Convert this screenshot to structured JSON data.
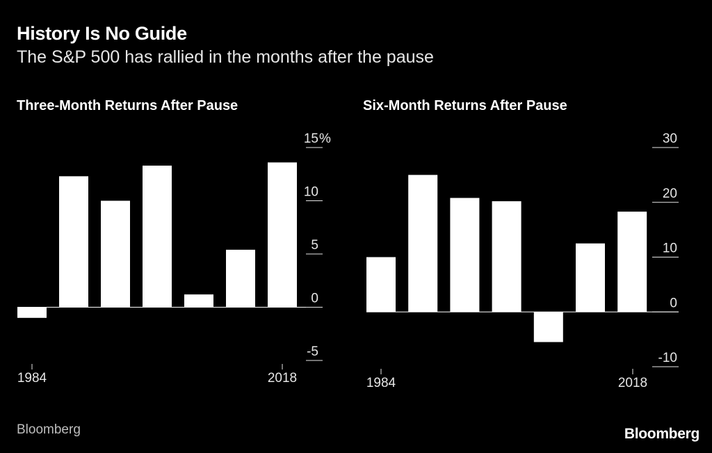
{
  "header": {
    "title": "History Is No Guide",
    "subtitle": "The S&P 500 has rallied in the months after the pause"
  },
  "footer": {
    "source": "Bloomberg",
    "logo": "Bloomberg"
  },
  "colors": {
    "background": "#000000",
    "bars": "#ffffff",
    "text": "#e6e6e6"
  },
  "chart_data": [
    {
      "type": "bar",
      "title": "Three-Month Returns After Pause",
      "unit": "%",
      "values": [
        -1.0,
        12.3,
        10.0,
        13.3,
        1.2,
        5.4,
        13.6
      ],
      "x_tick_labels": [
        "1984",
        "2018"
      ],
      "y_ticks": [
        15,
        10,
        5,
        0,
        -5
      ],
      "y_tick_labels": [
        "15",
        "10",
        "5",
        "0",
        "-5"
      ],
      "ylim": [
        -5,
        15
      ],
      "axis_side": "right",
      "grid": false
    },
    {
      "type": "bar",
      "title": "Six-Month Returns After Pause",
      "unit": "",
      "values": [
        10.0,
        25.0,
        20.8,
        20.2,
        -5.5,
        12.5,
        18.3
      ],
      "x_tick_labels": [
        "1984",
        "2018"
      ],
      "y_ticks": [
        30,
        20,
        10,
        0,
        -10
      ],
      "y_tick_labels": [
        "30",
        "20",
        "10",
        "0",
        "-10"
      ],
      "ylim": [
        -10,
        30
      ],
      "axis_side": "right",
      "grid": false
    }
  ]
}
